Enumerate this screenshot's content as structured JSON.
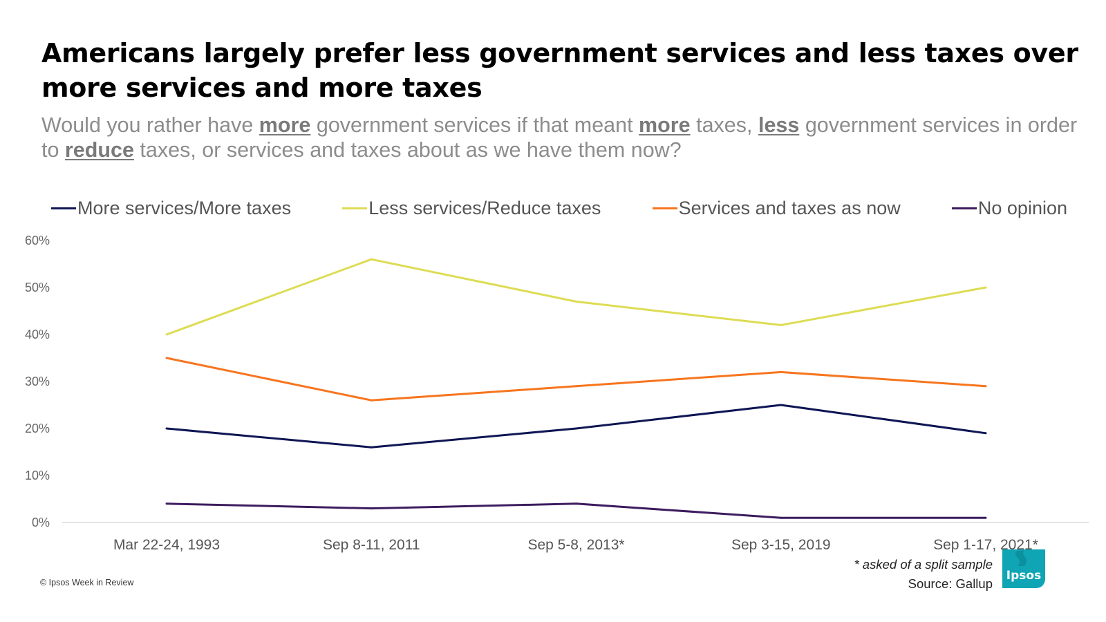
{
  "header": {
    "title": "Americans largely prefer less government services and less taxes over more services and more taxes",
    "subtitle_parts": [
      {
        "text": "Would you rather have ",
        "emphasis": false
      },
      {
        "text": "more",
        "emphasis": true
      },
      {
        "text": " government services if that meant ",
        "emphasis": false
      },
      {
        "text": "more",
        "emphasis": true
      },
      {
        "text": " taxes, ",
        "emphasis": false
      },
      {
        "text": "less",
        "emphasis": true
      },
      {
        "text": " government services in order to ",
        "emphasis": false
      },
      {
        "text": "reduce",
        "emphasis": true
      },
      {
        "text": " taxes, or services and taxes about as we have them now?",
        "emphasis": false
      }
    ]
  },
  "chart_data": {
    "type": "line",
    "categories": [
      "Mar 22-24, 1993",
      "Sep 8-11, 2011",
      "Sep 5-8, 2013*",
      "Sep 3-15, 2019",
      "Sep 1-17, 2021*"
    ],
    "y_ticks": [
      "0%",
      "10%",
      "20%",
      "30%",
      "40%",
      "50%",
      "60%"
    ],
    "ylim": [
      0,
      60
    ],
    "legend_position": "top",
    "grid": false,
    "series": [
      {
        "name": "More services/More taxes",
        "color": "#0f1654",
        "values": [
          20,
          16,
          20,
          25,
          19
        ]
      },
      {
        "name": "Less services/Reduce taxes",
        "color": "#dddc54",
        "values": [
          40,
          56,
          47,
          42,
          50
        ]
      },
      {
        "name": "Services and taxes as now",
        "color": "#f7751e",
        "values": [
          35,
          26,
          29,
          32,
          29
        ]
      },
      {
        "name": "No opinion",
        "color": "#3c1c5e",
        "values": [
          4,
          3,
          4,
          1,
          1
        ]
      }
    ]
  },
  "footer": {
    "footnote": "* asked of a split sample",
    "source": "Source: Gallup",
    "copyright": "© Ipsos Week in Review",
    "logo_text": "Ipsos",
    "logo_color": "#0fa5b4"
  }
}
